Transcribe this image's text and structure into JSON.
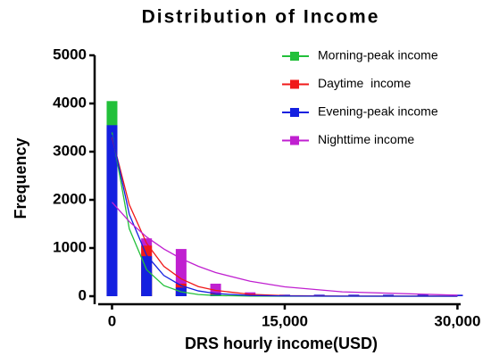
{
  "chart_data": {
    "type": "histogram",
    "title": "Distribution of Income",
    "x_label": "DRS hourly income(USD)",
    "y_label": "Frequency",
    "x": [
      0,
      3000,
      6000,
      9000,
      12000,
      15000,
      18000,
      21000,
      24000,
      27000,
      30000
    ],
    "fit_x": [
      0,
      1500,
      3000,
      4500,
      6000,
      7500,
      9000,
      12000,
      15000,
      20000,
      30000
    ],
    "series": [
      {
        "name": "Morning-peak income",
        "color": "#22c03a",
        "values": [
          4050,
          500,
          60,
          15,
          10,
          10,
          10,
          10,
          10,
          10,
          10
        ],
        "fit": [
          3400,
          1400,
          550,
          220,
          90,
          35,
          15,
          3,
          0,
          0,
          0
        ]
      },
      {
        "name": "Daytime  income",
        "color": "#f01818",
        "values": [
          3500,
          1050,
          260,
          60,
          25,
          20,
          20,
          20,
          20,
          20,
          20
        ],
        "fit": [
          3300,
          1900,
          1100,
          620,
          360,
          200,
          120,
          40,
          12,
          2,
          0
        ]
      },
      {
        "name": "Evening-peak income",
        "color": "#1420e0",
        "values": [
          3550,
          830,
          180,
          40,
          20,
          30,
          30,
          30,
          30,
          30,
          30
        ],
        "fit": [
          3350,
          1700,
          850,
          430,
          220,
          110,
          55,
          15,
          4,
          0,
          0
        ]
      },
      {
        "name": "Nighttime income",
        "color": "#c020d0",
        "values": [
          1900,
          1200,
          980,
          260,
          80,
          30,
          30,
          30,
          30,
          30,
          30
        ],
        "fit": [
          1950,
          1550,
          1230,
          980,
          780,
          620,
          490,
          310,
          195,
          90,
          20
        ]
      }
    ],
    "xlim": [
      -1200,
      30200
    ],
    "ylim": [
      0,
      5000
    ],
    "xticks": [
      0,
      {
        "value": 15000,
        "label": "15,000"
      },
      {
        "value": 30000,
        "label": "30,000"
      }
    ],
    "yticks": [
      0,
      1000,
      2000,
      3000,
      4000,
      5000
    ],
    "legend": "upper right"
  }
}
